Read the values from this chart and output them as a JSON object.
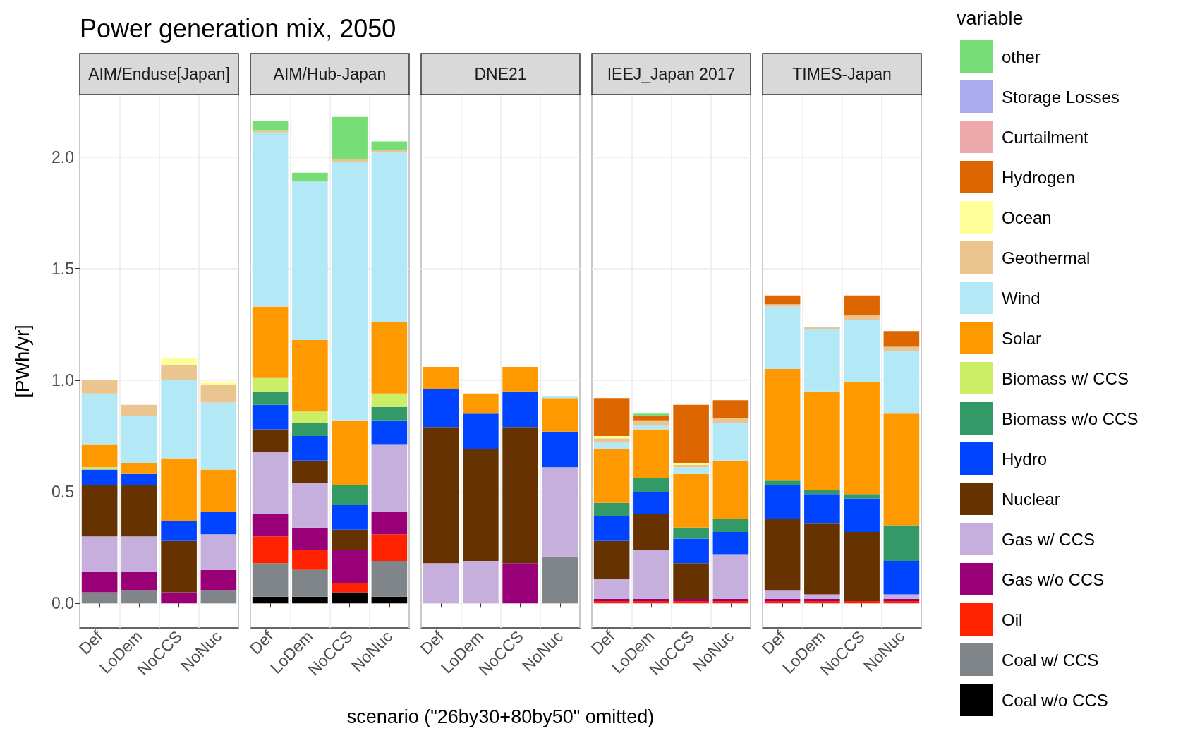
{
  "chart_data": [
    {
      "type": "bar",
      "title": "Power generation mix, 2050",
      "subtitle": "AIM/Enduse[Japan]",
      "ylabel": "[PWh/yr]",
      "categories": [
        "Def",
        "LoDem",
        "NoCCS",
        "NoNuc"
      ],
      "stacked": true,
      "grid": true,
      "ylim": [
        -0.11,
        2.28
      ],
      "yticks": [
        {
          "value": 0,
          "label": "0.0"
        },
        {
          "value": 0.5,
          "label": "0.5"
        },
        {
          "value": 1,
          "label": "1.0"
        },
        {
          "value": 1.5,
          "label": "1.5"
        },
        {
          "value": 2,
          "label": "2.0"
        }
      ],
      "series": [
        {
          "color": "#000000",
          "values": [
            null,
            null,
            null,
            null
          ]
        },
        {
          "color": "#7f8589",
          "values": [
            0.05,
            0.06,
            null,
            0.06
          ]
        },
        {
          "color": "#ff2200",
          "values": [
            null,
            null,
            null,
            null
          ]
        },
        {
          "color": "#990077",
          "values": [
            0.09,
            0.08,
            0.05,
            0.09
          ]
        },
        {
          "color": "#c6afdc",
          "values": [
            0.16,
            0.16,
            null,
            0.16
          ]
        },
        {
          "color": "#663300",
          "values": [
            0.23,
            0.23,
            0.23,
            null
          ]
        },
        {
          "color": "#0044ff",
          "values": [
            0.07,
            0.05,
            0.09,
            0.1
          ]
        },
        {
          "color": "#339966",
          "values": [
            null,
            null,
            null,
            null
          ]
        },
        {
          "color": "#ccee66",
          "values": [
            0.01,
            null,
            null,
            null
          ]
        },
        {
          "color": "#ff9900",
          "values": [
            0.1,
            0.05,
            0.28,
            0.19
          ]
        },
        {
          "color": "#b3e8f7",
          "values": [
            0.23,
            0.21,
            0.35,
            0.3
          ]
        },
        {
          "color": "#eac58f",
          "values": [
            0.06,
            0.05,
            0.07,
            0.08
          ]
        },
        {
          "color": "#ffff99",
          "values": [
            null,
            null,
            0.03,
            0.01
          ]
        },
        {
          "color": "#dd6600",
          "values": [
            null,
            null,
            null,
            null
          ]
        },
        {
          "color": "#eeaaaa",
          "values": [
            null,
            null,
            null,
            null
          ]
        },
        {
          "color": "#aaaaee",
          "values": [
            null,
            null,
            null,
            null
          ]
        },
        {
          "color": "#77dd77",
          "values": [
            null,
            null,
            null,
            null
          ]
        }
      ]
    },
    {
      "type": "bar",
      "subtitle": "AIM/Hub-Japan",
      "categories": [
        "Def",
        "LoDem",
        "NoCCS",
        "NoNuc"
      ],
      "stacked": true,
      "grid": true,
      "tick_labels": "x",
      "ylim": [
        -0.11,
        2.28
      ],
      "yticks": [
        0,
        0.5,
        1,
        1.5,
        2
      ],
      "series": [
        {
          "color": "#000000",
          "values": [
            0.03,
            0.03,
            0.05,
            0.03
          ]
        },
        {
          "color": "#7f8589",
          "values": [
            0.15,
            0.12,
            null,
            0.16
          ]
        },
        {
          "color": "#ff2200",
          "values": [
            0.12,
            0.09,
            0.04,
            0.12
          ]
        },
        {
          "color": "#990077",
          "values": [
            0.1,
            0.1,
            0.15,
            0.1
          ]
        },
        {
          "color": "#c6afdc",
          "values": [
            0.28,
            0.2,
            null,
            0.3
          ]
        },
        {
          "color": "#663300",
          "values": [
            0.1,
            0.1,
            0.09,
            null
          ]
        },
        {
          "color": "#0044ff",
          "values": [
            0.11,
            0.11,
            0.11,
            0.11
          ]
        },
        {
          "color": "#339966",
          "values": [
            0.06,
            0.06,
            0.09,
            0.06
          ]
        },
        {
          "color": "#ccee66",
          "values": [
            0.06,
            0.05,
            null,
            0.06
          ]
        },
        {
          "color": "#ff9900",
          "values": [
            0.32,
            0.32,
            0.29,
            0.32
          ]
        },
        {
          "color": "#b3e8f7",
          "values": [
            0.78,
            0.71,
            1.16,
            0.76
          ]
        },
        {
          "color": "#eac58f",
          "values": [
            0.01,
            null,
            0.01,
            0.01
          ]
        },
        {
          "color": "#ffff99",
          "values": [
            null,
            null,
            null,
            null
          ]
        },
        {
          "color": "#dd6600",
          "values": [
            null,
            null,
            null,
            null
          ]
        },
        {
          "color": "#eeaaaa",
          "values": [
            null,
            null,
            null,
            null
          ]
        },
        {
          "color": "#aaaaee",
          "values": [
            null,
            null,
            null,
            null
          ]
        },
        {
          "color": "#77dd77",
          "values": [
            0.04,
            0.04,
            0.19,
            0.04
          ]
        }
      ]
    },
    {
      "type": "bar",
      "subtitle": "DNE21",
      "xlabel": "scenario (\"26by30+80by50\" omitted)",
      "categories": [
        "Def",
        "LoDem",
        "NoCCS",
        "NoNuc"
      ],
      "stacked": true,
      "grid": true,
      "tick_labels": "x",
      "ylim": [
        -0.11,
        2.28
      ],
      "yticks": [
        0,
        0.5,
        1,
        1.5,
        2
      ],
      "series": [
        {
          "color": "#000000",
          "values": [
            null,
            null,
            null,
            null
          ]
        },
        {
          "color": "#7f8589",
          "values": [
            null,
            null,
            null,
            0.21
          ]
        },
        {
          "color": "#ff2200",
          "values": [
            null,
            null,
            null,
            null
          ]
        },
        {
          "color": "#990077",
          "values": [
            null,
            null,
            0.18,
            null
          ]
        },
        {
          "color": "#c6afdc",
          "values": [
            0.18,
            0.19,
            null,
            0.4
          ]
        },
        {
          "color": "#663300",
          "values": [
            0.61,
            0.5,
            0.61,
            null
          ]
        },
        {
          "color": "#0044ff",
          "values": [
            0.17,
            0.16,
            0.16,
            0.16
          ]
        },
        {
          "color": "#339966",
          "values": [
            null,
            null,
            null,
            null
          ]
        },
        {
          "color": "#ccee66",
          "values": [
            null,
            null,
            null,
            null
          ]
        },
        {
          "color": "#ff9900",
          "values": [
            0.1,
            0.09,
            0.11,
            0.15
          ]
        },
        {
          "color": "#b3e8f7",
          "values": [
            null,
            null,
            null,
            0.01
          ]
        },
        {
          "color": "#eac58f",
          "values": [
            null,
            null,
            null,
            null
          ]
        },
        {
          "color": "#ffff99",
          "values": [
            null,
            null,
            null,
            null
          ]
        },
        {
          "color": "#dd6600",
          "values": [
            null,
            null,
            null,
            null
          ]
        },
        {
          "color": "#eeaaaa",
          "values": [
            null,
            null,
            null,
            null
          ]
        },
        {
          "color": "#aaaaee",
          "values": [
            null,
            null,
            null,
            null
          ]
        },
        {
          "color": "#77dd77",
          "values": [
            null,
            null,
            null,
            null
          ]
        }
      ]
    },
    {
      "type": "bar",
      "subtitle": "IEEJ_Japan 2017",
      "categories": [
        "Def",
        "LoDem",
        "NoCCS",
        "NoNuc"
      ],
      "stacked": true,
      "grid": true,
      "tick_labels": "x",
      "ylim": [
        -0.11,
        2.28
      ],
      "yticks": [
        0,
        0.5,
        1,
        1.5,
        2
      ],
      "series": [
        {
          "color": "#000000",
          "values": [
            null,
            null,
            null,
            null
          ]
        },
        {
          "color": "#7f8589",
          "values": [
            null,
            null,
            null,
            null
          ]
        },
        {
          "color": "#ff2200",
          "values": [
            0.01,
            0.01,
            0.01,
            0.01
          ]
        },
        {
          "color": "#990077",
          "values": [
            0.01,
            0.01,
            0.01,
            0.01
          ]
        },
        {
          "color": "#c6afdc",
          "values": [
            0.09,
            0.22,
            null,
            0.2
          ]
        },
        {
          "color": "#663300",
          "values": [
            0.17,
            0.16,
            0.16,
            null
          ]
        },
        {
          "color": "#0044ff",
          "values": [
            0.11,
            0.1,
            0.11,
            0.1
          ]
        },
        {
          "color": "#339966",
          "values": [
            0.06,
            0.06,
            0.05,
            0.06
          ]
        },
        {
          "color": "#ccee66",
          "values": [
            null,
            null,
            null,
            null
          ]
        },
        {
          "color": "#ff9900",
          "values": [
            0.24,
            0.22,
            0.24,
            0.26
          ]
        },
        {
          "color": "#b3e8f7",
          "values": [
            0.03,
            0.02,
            0.03,
            0.17
          ]
        },
        {
          "color": "#eac58f",
          "values": [
            0.02,
            0.02,
            0.01,
            0.02
          ]
        },
        {
          "color": "#ffff99",
          "values": [
            0.01,
            null,
            0.01,
            null
          ]
        },
        {
          "color": "#dd6600",
          "values": [
            0.17,
            0.02,
            0.26,
            0.08
          ]
        },
        {
          "color": "#eeaaaa",
          "values": [
            null,
            null,
            null,
            null
          ]
        },
        {
          "color": "#aaaaee",
          "values": [
            null,
            null,
            null,
            null
          ]
        },
        {
          "color": "#77dd77",
          "values": [
            null,
            0.01,
            null,
            null
          ]
        }
      ]
    },
    {
      "type": "bar",
      "subtitle": "TIMES-Japan",
      "legend": "right",
      "legend_title": "variable",
      "categories": [
        "Def",
        "LoDem",
        "NoCCS",
        "NoNuc"
      ],
      "stacked": true,
      "grid": true,
      "tick_labels": "x",
      "ylim": [
        -0.11,
        2.28
      ],
      "yticks": [
        0,
        0.5,
        1,
        1.5,
        2
      ],
      "series": [
        {
          "name": "Coal w/o CCS",
          "color": "#000000",
          "values": [
            null,
            null,
            null,
            null
          ]
        },
        {
          "name": "Coal w/ CCS",
          "color": "#7f8589",
          "values": [
            null,
            null,
            null,
            null
          ]
        },
        {
          "name": "Oil",
          "color": "#ff2200",
          "values": [
            0.01,
            0.01,
            0.01,
            0.01
          ]
        },
        {
          "name": "Gas w/o CCS",
          "color": "#990077",
          "values": [
            0.01,
            0.01,
            null,
            0.01
          ]
        },
        {
          "name": "Gas w/ CCS",
          "color": "#c6afdc",
          "values": [
            0.04,
            0.02,
            null,
            0.02
          ]
        },
        {
          "name": "Nuclear",
          "color": "#663300",
          "values": [
            0.32,
            0.32,
            0.31,
            null
          ]
        },
        {
          "name": "Hydro",
          "color": "#0044ff",
          "values": [
            0.15,
            0.13,
            0.15,
            0.15
          ]
        },
        {
          "name": "Biomass w/o CCS",
          "color": "#339966",
          "values": [
            0.02,
            0.02,
            0.02,
            0.16
          ]
        },
        {
          "name": "Biomass w/ CCS",
          "color": "#ccee66",
          "values": [
            null,
            null,
            null,
            null
          ]
        },
        {
          "name": "Solar",
          "color": "#ff9900",
          "values": [
            0.5,
            0.44,
            0.5,
            0.5
          ]
        },
        {
          "name": "Wind",
          "color": "#b3e8f7",
          "values": [
            0.28,
            0.28,
            0.28,
            0.28
          ]
        },
        {
          "name": "Geothermal",
          "color": "#eac58f",
          "values": [
            0.01,
            0.01,
            0.02,
            0.02
          ]
        },
        {
          "name": "Ocean",
          "color": "#ffff99",
          "values": [
            null,
            null,
            null,
            null
          ]
        },
        {
          "name": "Hydrogen",
          "color": "#dd6600",
          "values": [
            0.04,
            null,
            0.09,
            0.07
          ]
        },
        {
          "name": "Curtailment",
          "color": "#eeaaaa",
          "values": [
            null,
            null,
            null,
            null
          ]
        },
        {
          "name": "Storage Losses",
          "color": "#aaaaee",
          "values": [
            null,
            null,
            null,
            null
          ]
        },
        {
          "name": "other",
          "color": "#77dd77",
          "values": [
            null,
            null,
            null,
            null
          ]
        }
      ]
    }
  ]
}
